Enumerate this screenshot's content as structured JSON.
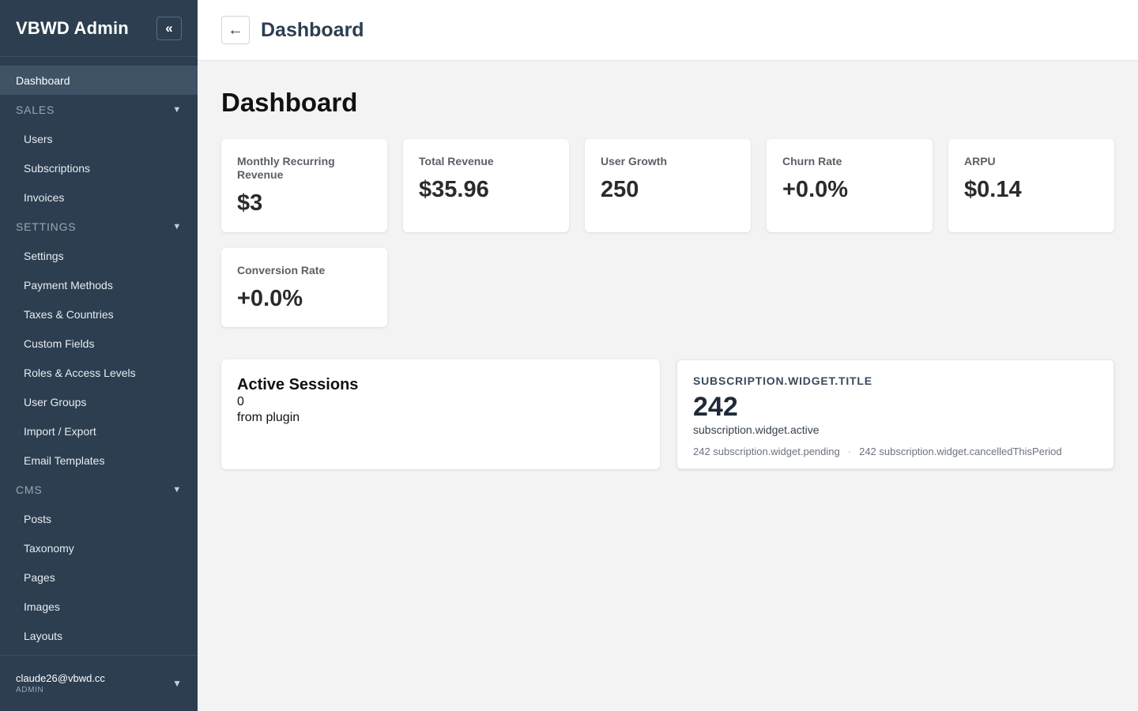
{
  "app": {
    "brand": "VBWD Admin",
    "collapse_icon": "«"
  },
  "sidebar": {
    "dashboard": "Dashboard",
    "sections": [
      {
        "label": "SALES",
        "items": [
          "Users",
          "Subscriptions",
          "Invoices"
        ]
      },
      {
        "label": "SETTINGS",
        "items": [
          "Settings",
          "Payment Methods",
          "Taxes & Countries",
          "Custom Fields",
          "Roles & Access Levels",
          "User Groups",
          "Import / Export",
          "Email Templates"
        ]
      },
      {
        "label": "CMS",
        "items": [
          "Posts",
          "Taxonomy",
          "Pages",
          "Images",
          "Layouts"
        ]
      }
    ],
    "chevron": "▼",
    "user": {
      "email": "claude26@vbwd.cc",
      "role": "ADMIN"
    }
  },
  "header": {
    "back_icon": "←",
    "title": "Dashboard"
  },
  "main": {
    "page_title": "Dashboard",
    "stats": [
      {
        "label": "Monthly Recurring Revenue",
        "value": "$3"
      },
      {
        "label": "Total Revenue",
        "value": "$35.96"
      },
      {
        "label": "User Growth",
        "value": "250"
      },
      {
        "label": "Churn Rate",
        "value": "+0.0%"
      },
      {
        "label": "ARPU",
        "value": "$0.14"
      },
      {
        "label": "Conversion Rate",
        "value": "+0.0%"
      }
    ],
    "sessions_widget": {
      "title": "Active Sessions",
      "value": "0",
      "source": "from plugin"
    },
    "subscription_widget": {
      "title": "SUBSCRIPTION.WIDGET.TITLE",
      "count": "242",
      "active_label": "subscription.widget.active",
      "pending": "242 subscription.widget.pending",
      "separator": "·",
      "cancelled": "242 subscription.widget.cancelledThisPeriod"
    }
  },
  "colors": {
    "sidebar_bg": "#2c3e50",
    "sidebar_active": "#3f5266",
    "page_bg": "#f3f3f4",
    "header_title": "#2c3e50"
  }
}
